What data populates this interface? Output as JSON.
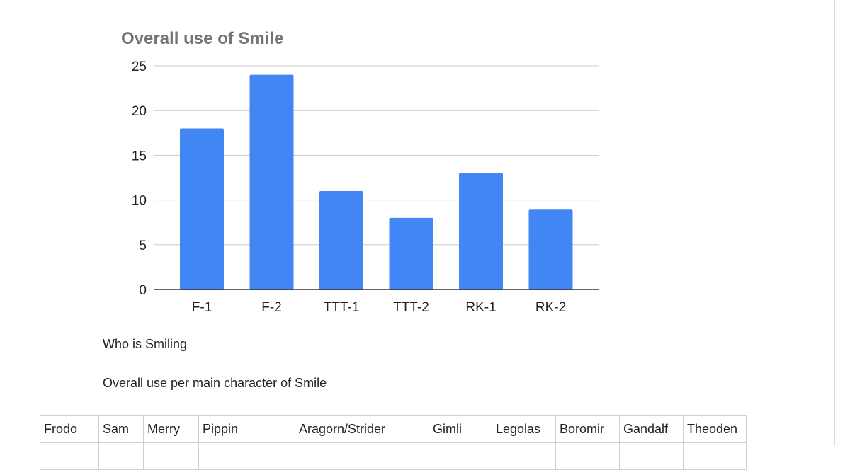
{
  "chart_data": {
    "type": "bar",
    "title": "Overall use of Smile",
    "categories": [
      "F-1",
      "F-2",
      "TTT-1",
      "TTT-2",
      "RK-1",
      "RK-2"
    ],
    "values": [
      18,
      24,
      11,
      8,
      13,
      9
    ],
    "ylim": [
      0,
      25
    ],
    "yticks": [
      0,
      5,
      10,
      15,
      20,
      25
    ],
    "xlabel": "",
    "ylabel": "",
    "grid": true,
    "legend": "none",
    "bar_color": "#4285f4"
  },
  "document": {
    "heading_1": "Who is Smiling",
    "heading_2": "Overall use per main character of Smile"
  },
  "table": {
    "headers": [
      "Frodo",
      "Sam",
      "Merry",
      "Pippin",
      "Aragorn/Strider",
      "Gimli",
      "Legolas",
      "Boromir",
      "Gandalf",
      "Theoden"
    ]
  }
}
